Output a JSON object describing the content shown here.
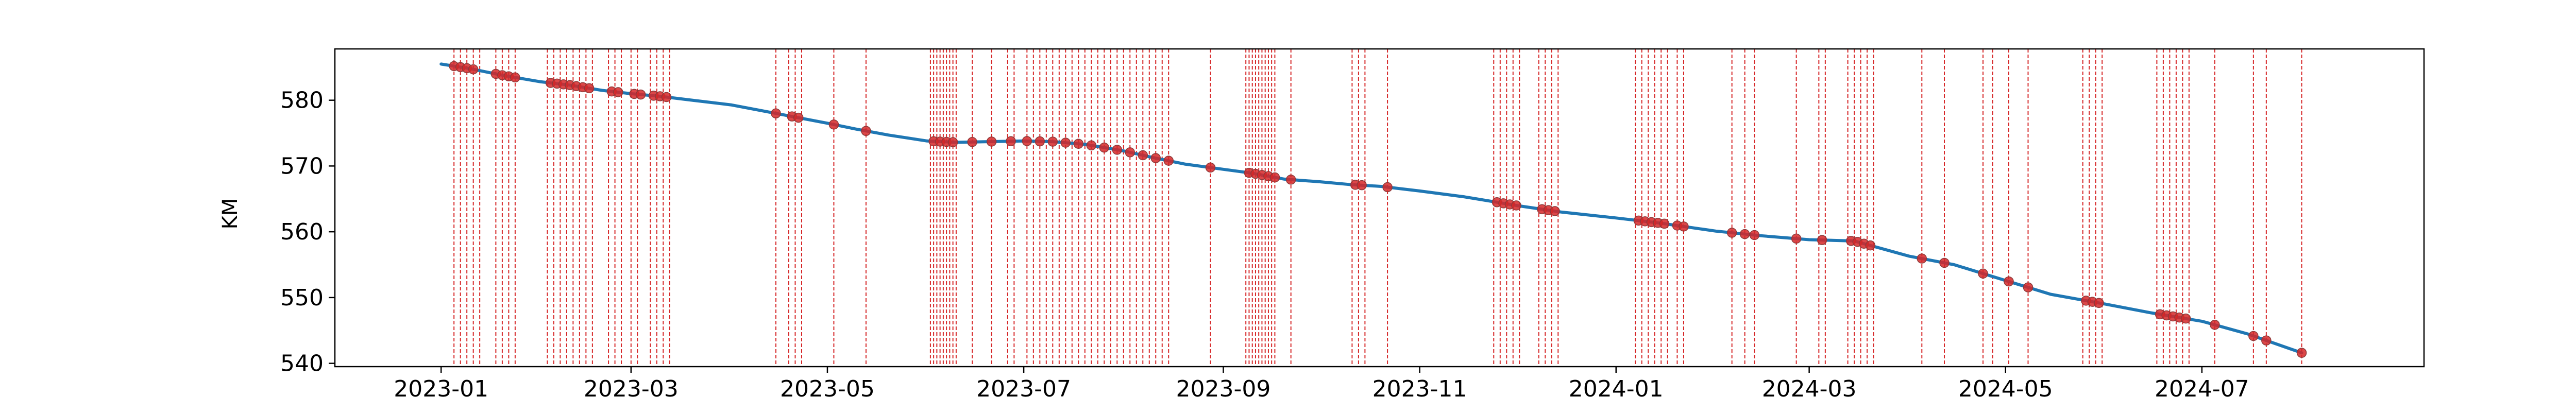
{
  "chart_data": {
    "type": "line",
    "title": "",
    "xlabel": "",
    "ylabel": "KM",
    "x_type": "date",
    "xlim": [
      "2022-11-29",
      "2024-09-08"
    ],
    "ylim": [
      539.5,
      587.8
    ],
    "x_ticks": [
      "2023-01",
      "2023-03",
      "2023-05",
      "2023-07",
      "2023-09",
      "2023-11",
      "2024-01",
      "2024-03",
      "2024-05",
      "2024-07"
    ],
    "x_tick_dates": [
      "2023-01-01",
      "2023-03-01",
      "2023-05-01",
      "2023-07-01",
      "2023-09-01",
      "2023-11-01",
      "2024-01-01",
      "2024-03-01",
      "2024-05-01",
      "2024-07-01"
    ],
    "y_ticks": [
      540,
      550,
      560,
      570,
      580
    ],
    "grid": false,
    "legend": "none",
    "colors": {
      "line": "#1f77b4",
      "markers": "#d62728",
      "events": "#d62728",
      "axes": "#000000"
    },
    "series": [
      {
        "x": [
          "2023-01-01",
          "2023-01-10",
          "2023-01-20",
          "2023-02-01",
          "2023-02-10",
          "2023-02-20",
          "2023-03-01",
          "2023-03-10",
          "2023-03-20",
          "2023-04-01",
          "2023-04-15",
          "2023-05-01",
          "2023-05-10",
          "2023-05-20",
          "2023-06-01",
          "2023-06-10",
          "2023-06-20",
          "2023-07-01",
          "2023-07-10",
          "2023-07-20",
          "2023-08-01",
          "2023-08-10",
          "2023-08-20",
          "2023-09-01",
          "2023-09-10",
          "2023-09-20",
          "2023-10-01",
          "2023-10-10",
          "2023-10-20",
          "2023-11-01",
          "2023-11-15",
          "2023-12-01",
          "2023-12-15",
          "2024-01-01",
          "2024-01-15",
          "2024-02-01",
          "2024-02-15",
          "2024-03-01",
          "2024-03-15",
          "2024-04-01",
          "2024-04-15",
          "2024-05-01",
          "2024-05-15",
          "2024-06-01",
          "2024-06-15",
          "2024-07-01",
          "2024-07-15",
          "2024-08-01"
        ],
        "y": [
          585.5,
          584.8,
          583.8,
          582.8,
          582.3,
          581.5,
          581.0,
          580.6,
          580.0,
          579.3,
          578.0,
          576.5,
          575.6,
          574.7,
          573.8,
          573.6,
          573.7,
          573.8,
          573.7,
          573.3,
          572.3,
          571.3,
          570.3,
          569.5,
          568.9,
          568.0,
          567.6,
          567.2,
          566.9,
          566.2,
          565.3,
          564.0,
          563.0,
          562.1,
          561.3,
          560.1,
          559.4,
          558.8,
          558.6,
          556.3,
          555.0,
          552.6,
          550.5,
          549.0,
          547.7,
          546.4,
          544.5,
          541.6
        ]
      }
    ],
    "marker_dates": [
      "2023-01-05",
      "2023-01-07",
      "2023-01-09",
      "2023-01-11",
      "2023-01-18",
      "2023-01-20",
      "2023-01-22",
      "2023-01-24",
      "2023-02-04",
      "2023-02-06",
      "2023-02-08",
      "2023-02-10",
      "2023-02-12",
      "2023-02-14",
      "2023-02-16",
      "2023-02-23",
      "2023-02-25",
      "2023-03-02",
      "2023-03-04",
      "2023-03-08",
      "2023-03-10",
      "2023-03-12",
      "2023-04-15",
      "2023-04-20",
      "2023-04-22",
      "2023-05-03",
      "2023-05-13",
      "2023-06-03",
      "2023-06-05",
      "2023-06-07",
      "2023-06-09",
      "2023-06-15",
      "2023-06-21",
      "2023-06-27",
      "2023-07-02",
      "2023-07-06",
      "2023-07-10",
      "2023-07-14",
      "2023-07-18",
      "2023-07-22",
      "2023-07-26",
      "2023-07-30",
      "2023-08-03",
      "2023-08-07",
      "2023-08-11",
      "2023-08-15",
      "2023-08-28",
      "2023-09-09",
      "2023-09-11",
      "2023-09-13",
      "2023-09-15",
      "2023-09-17",
      "2023-09-22",
      "2023-10-12",
      "2023-10-14",
      "2023-10-22",
      "2023-11-25",
      "2023-11-27",
      "2023-11-29",
      "2023-12-01",
      "2023-12-09",
      "2023-12-11",
      "2023-12-13",
      "2024-01-08",
      "2024-01-10",
      "2024-01-12",
      "2024-01-14",
      "2024-01-16",
      "2024-01-20",
      "2024-01-22",
      "2024-02-06",
      "2024-02-10",
      "2024-02-13",
      "2024-02-26",
      "2024-03-05",
      "2024-03-14",
      "2024-03-16",
      "2024-03-18",
      "2024-03-20",
      "2024-04-05",
      "2024-04-12",
      "2024-04-24",
      "2024-05-02",
      "2024-05-08",
      "2024-05-26",
      "2024-05-28",
      "2024-05-30",
      "2024-06-18",
      "2024-06-20",
      "2024-06-22",
      "2024-06-24",
      "2024-06-26",
      "2024-07-05",
      "2024-07-17",
      "2024-07-21",
      "2024-08-01"
    ],
    "event_dates": [
      "2023-01-05",
      "2023-01-07",
      "2023-01-09",
      "2023-01-11",
      "2023-01-13",
      "2023-01-18",
      "2023-01-20",
      "2023-01-22",
      "2023-01-24",
      "2023-02-03",
      "2023-02-05",
      "2023-02-07",
      "2023-02-09",
      "2023-02-11",
      "2023-02-13",
      "2023-02-15",
      "2023-02-17",
      "2023-02-22",
      "2023-02-24",
      "2023-02-26",
      "2023-03-01",
      "2023-03-03",
      "2023-03-07",
      "2023-03-09",
      "2023-03-11",
      "2023-03-13",
      "2023-04-15",
      "2023-04-19",
      "2023-04-21",
      "2023-04-23",
      "2023-05-03",
      "2023-05-13",
      "2023-06-02",
      "2023-06-03",
      "2023-06-04",
      "2023-06-05",
      "2023-06-06",
      "2023-06-07",
      "2023-06-08",
      "2023-06-09",
      "2023-06-10",
      "2023-06-15",
      "2023-06-21",
      "2023-06-26",
      "2023-06-28",
      "2023-07-02",
      "2023-07-04",
      "2023-07-06",
      "2023-07-08",
      "2023-07-10",
      "2023-07-12",
      "2023-07-14",
      "2023-07-16",
      "2023-07-18",
      "2023-07-20",
      "2023-07-22",
      "2023-07-24",
      "2023-07-26",
      "2023-07-28",
      "2023-07-30",
      "2023-08-01",
      "2023-08-03",
      "2023-08-05",
      "2023-08-07",
      "2023-08-09",
      "2023-08-11",
      "2023-08-13",
      "2023-08-15",
      "2023-08-28",
      "2023-09-08",
      "2023-09-09",
      "2023-09-10",
      "2023-09-11",
      "2023-09-12",
      "2023-09-13",
      "2023-09-14",
      "2023-09-15",
      "2023-09-16",
      "2023-09-17",
      "2023-09-22",
      "2023-10-11",
      "2023-10-13",
      "2023-10-15",
      "2023-10-22",
      "2023-11-24",
      "2023-11-26",
      "2023-11-28",
      "2023-11-30",
      "2023-12-02",
      "2023-12-08",
      "2023-12-10",
      "2023-12-12",
      "2023-12-14",
      "2024-01-07",
      "2024-01-09",
      "2024-01-11",
      "2024-01-13",
      "2024-01-15",
      "2024-01-17",
      "2024-01-20",
      "2024-01-22",
      "2024-02-06",
      "2024-02-10",
      "2024-02-13",
      "2024-02-26",
      "2024-03-04",
      "2024-03-06",
      "2024-03-13",
      "2024-03-15",
      "2024-03-17",
      "2024-03-19",
      "2024-03-21",
      "2024-04-05",
      "2024-04-12",
      "2024-04-24",
      "2024-04-27",
      "2024-05-02",
      "2024-05-08",
      "2024-05-25",
      "2024-05-27",
      "2024-05-29",
      "2024-05-31",
      "2024-06-17",
      "2024-06-19",
      "2024-06-21",
      "2024-06-23",
      "2024-06-25",
      "2024-06-27",
      "2024-07-05",
      "2024-07-17",
      "2024-07-21",
      "2024-08-01"
    ]
  }
}
